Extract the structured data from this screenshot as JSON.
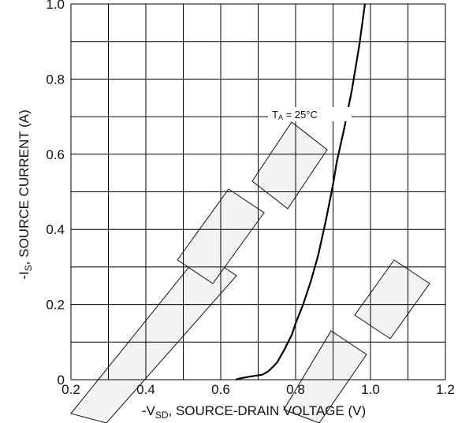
{
  "chart_data": {
    "type": "line",
    "xlabel": {
      "prefix": "-V",
      "sub": "SD",
      "rest": ", SOURCE-DRAIN VOLTAGE (V)"
    },
    "ylabel": {
      "prefix": "-I",
      "sub": "S",
      "rest": ", SOURCE CURRENT (A)"
    },
    "xlim": [
      0.2,
      1.2
    ],
    "ylim": [
      0,
      1.0
    ],
    "x_ticks": [
      "0.2",
      "0.4",
      "0.6",
      "0.8",
      "1.0",
      "1.2"
    ],
    "y_ticks": [
      "0",
      "0.2",
      "0.4",
      "0.6",
      "0.8",
      "1.0"
    ],
    "grid": true,
    "annotation": {
      "main": "T",
      "sub": "A",
      "rest": " = 25°C"
    },
    "series": [
      {
        "x": [
          0.64,
          0.65,
          0.67,
          0.69,
          0.71,
          0.72,
          0.73,
          0.75,
          0.77,
          0.79,
          0.8,
          0.82,
          0.84,
          0.86,
          0.88,
          0.89,
          0.9,
          0.91,
          0.93,
          0.95,
          0.97,
          0.985
        ],
        "y": [
          0.0,
          0.003,
          0.007,
          0.01,
          0.013,
          0.018,
          0.025,
          0.045,
          0.08,
          0.12,
          0.15,
          0.2,
          0.26,
          0.33,
          0.42,
          0.47,
          0.52,
          0.58,
          0.67,
          0.77,
          0.89,
          1.0
        ],
        "color": "#000000"
      }
    ],
    "colors": {
      "grid": "#000000",
      "line": "#000000",
      "watermark_fill": "#f3f3f3"
    }
  }
}
